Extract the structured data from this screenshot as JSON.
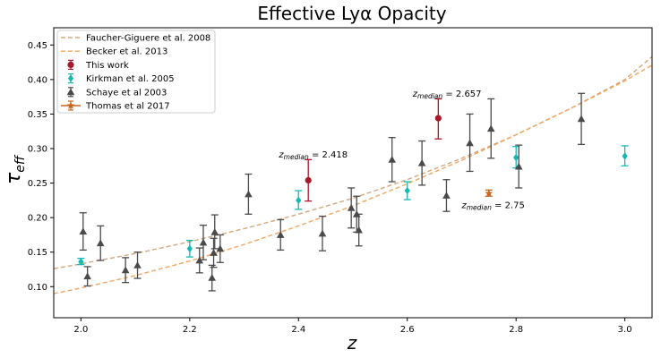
{
  "chart_data": {
    "type": "scatter",
    "title": "Effective Lyα Opacity",
    "xlabel": "z",
    "ylabel_main": "τ",
    "ylabel_sub": "eff",
    "xlim": [
      1.95,
      3.05
    ],
    "ylim": [
      0.055,
      0.475
    ],
    "xticks": [
      "2.0",
      "2.2",
      "2.4",
      "2.6",
      "2.8",
      "3.0"
    ],
    "yticks": [
      "0.10",
      "0.15",
      "0.20",
      "0.25",
      "0.30",
      "0.35",
      "0.40",
      "0.45"
    ],
    "grid": false,
    "legend_position": "top-left",
    "colors": {
      "fg08": "#d2a77d",
      "becker13": "#f2a55e",
      "this_work": "#a81828",
      "kirkman": "#14b9b4",
      "schaye": "#4a4a4a",
      "thomas": "#c8661e"
    },
    "lines": [
      {
        "name": "Faucher-Giguere et al. 2008",
        "style": "dashed",
        "x": [
          1.95,
          2.0,
          2.1,
          2.2,
          2.3,
          2.4,
          2.5,
          2.6,
          2.7,
          2.8,
          2.9,
          3.0,
          3.05
        ],
        "y": [
          0.126,
          0.133,
          0.148,
          0.165,
          0.184,
          0.205,
          0.228,
          0.255,
          0.286,
          0.32,
          0.358,
          0.4,
          0.433
        ]
      },
      {
        "name": "Becker et al. 2013",
        "style": "dashed",
        "x": [
          1.95,
          2.0,
          2.1,
          2.2,
          2.3,
          2.4,
          2.5,
          2.6,
          2.7,
          2.8,
          2.9,
          3.0,
          3.05
        ],
        "y": [
          0.09,
          0.098,
          0.116,
          0.137,
          0.161,
          0.188,
          0.217,
          0.249,
          0.283,
          0.32,
          0.358,
          0.398,
          0.421
        ]
      }
    ],
    "series": [
      {
        "name": "This work",
        "marker": "circle",
        "points": [
          {
            "x": 2.418,
            "y": 0.254,
            "lo": 0.224,
            "hi": 0.284
          },
          {
            "x": 2.657,
            "y": 0.344,
            "lo": 0.314,
            "hi": 0.372
          }
        ]
      },
      {
        "name": "Kirkman et al. 2005",
        "marker": "diamond",
        "points": [
          {
            "x": 2.0,
            "y": 0.136,
            "lo": 0.132,
            "hi": 0.141
          },
          {
            "x": 2.2,
            "y": 0.155,
            "lo": 0.143,
            "hi": 0.167
          },
          {
            "x": 2.4,
            "y": 0.225,
            "lo": 0.212,
            "hi": 0.239
          },
          {
            "x": 2.6,
            "y": 0.239,
            "lo": 0.226,
            "hi": 0.252
          },
          {
            "x": 2.8,
            "y": 0.287,
            "lo": 0.272,
            "hi": 0.303
          },
          {
            "x": 3.0,
            "y": 0.289,
            "lo": 0.275,
            "hi": 0.304
          }
        ]
      },
      {
        "name": "Schaye et al 2003",
        "marker": "triangle",
        "points": [
          {
            "x": 2.004,
            "y": 0.18,
            "lo": 0.153,
            "hi": 0.207
          },
          {
            "x": 2.012,
            "y": 0.115,
            "lo": 0.101,
            "hi": 0.129
          },
          {
            "x": 2.036,
            "y": 0.163,
            "lo": 0.138,
            "hi": 0.188
          },
          {
            "x": 2.082,
            "y": 0.124,
            "lo": 0.106,
            "hi": 0.142
          },
          {
            "x": 2.104,
            "y": 0.131,
            "lo": 0.112,
            "hi": 0.15
          },
          {
            "x": 2.218,
            "y": 0.138,
            "lo": 0.12,
            "hi": 0.156
          },
          {
            "x": 2.225,
            "y": 0.164,
            "lo": 0.139,
            "hi": 0.189
          },
          {
            "x": 2.241,
            "y": 0.113,
            "lo": 0.094,
            "hi": 0.131
          },
          {
            "x": 2.244,
            "y": 0.149,
            "lo": 0.128,
            "hi": 0.17
          },
          {
            "x": 2.246,
            "y": 0.179,
            "lo": 0.155,
            "hi": 0.204
          },
          {
            "x": 2.256,
            "y": 0.155,
            "lo": 0.135,
            "hi": 0.175
          },
          {
            "x": 2.308,
            "y": 0.234,
            "lo": 0.205,
            "hi": 0.263
          },
          {
            "x": 2.367,
            "y": 0.175,
            "lo": 0.153,
            "hi": 0.197
          },
          {
            "x": 2.444,
            "y": 0.177,
            "lo": 0.152,
            "hi": 0.202
          },
          {
            "x": 2.497,
            "y": 0.214,
            "lo": 0.185,
            "hi": 0.243
          },
          {
            "x": 2.507,
            "y": 0.205,
            "lo": 0.179,
            "hi": 0.231
          },
          {
            "x": 2.511,
            "y": 0.182,
            "lo": 0.159,
            "hi": 0.205
          },
          {
            "x": 2.572,
            "y": 0.284,
            "lo": 0.252,
            "hi": 0.316
          },
          {
            "x": 2.627,
            "y": 0.279,
            "lo": 0.247,
            "hi": 0.311
          },
          {
            "x": 2.672,
            "y": 0.232,
            "lo": 0.209,
            "hi": 0.255
          },
          {
            "x": 2.715,
            "y": 0.308,
            "lo": 0.267,
            "hi": 0.35
          },
          {
            "x": 2.754,
            "y": 0.329,
            "lo": 0.286,
            "hi": 0.372
          },
          {
            "x": 2.805,
            "y": 0.274,
            "lo": 0.243,
            "hi": 0.305
          },
          {
            "x": 2.92,
            "y": 0.343,
            "lo": 0.306,
            "hi": 0.38
          }
        ]
      },
      {
        "name": "Thomas et al 2017",
        "marker": "star",
        "points": [
          {
            "x": 2.75,
            "y": 0.235,
            "lo": 0.231,
            "hi": 0.24
          }
        ]
      }
    ],
    "annotations": [
      {
        "prefix": "z",
        "sub": "median",
        "text": " = 2.418",
        "x": 2.364,
        "y": 0.287
      },
      {
        "prefix": "z",
        "sub": "median",
        "text": " = 2.657",
        "x": 2.61,
        "y": 0.375
      },
      {
        "prefix": "z",
        "sub": "median",
        "text": " = 2.75",
        "x": 2.7,
        "y": 0.214
      }
    ],
    "legend": [
      {
        "label": "Faucher-Giguere et al. 2008",
        "kind": "line",
        "key": "fg08"
      },
      {
        "label": "Becker et al. 2013",
        "kind": "line",
        "key": "becker13"
      },
      {
        "label": "This work",
        "kind": "circle",
        "key": "this_work"
      },
      {
        "label": "Kirkman et al. 2005",
        "kind": "diamond",
        "key": "kirkman"
      },
      {
        "label": "Schaye et al 2003",
        "kind": "triangle",
        "key": "schaye"
      },
      {
        "label": "Thomas et al 2017",
        "kind": "star",
        "key": "thomas"
      }
    ]
  }
}
